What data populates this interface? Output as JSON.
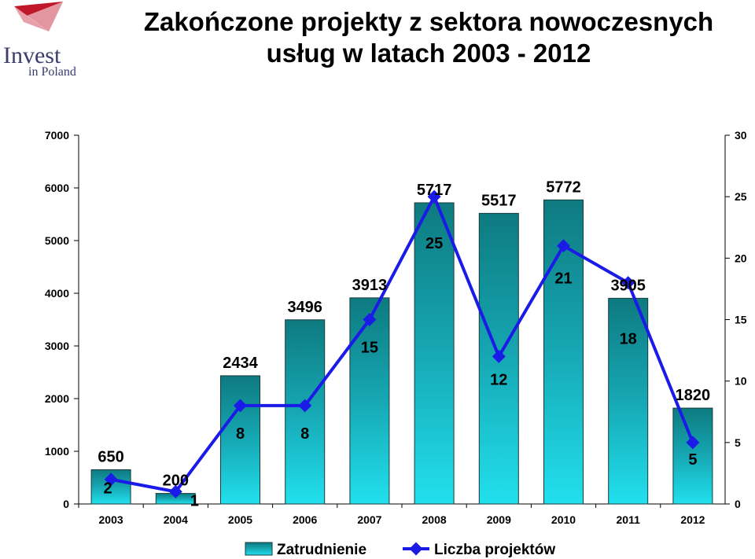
{
  "logo": {
    "line1": "Invest",
    "line2": "in Poland"
  },
  "title": {
    "line1": "Zakończone projekty z sektora nowoczesnych",
    "line2": "usług w latach 2003 - 2012"
  },
  "chart_data": {
    "type": "bar",
    "categories": [
      "2003",
      "2004",
      "2005",
      "2006",
      "2007",
      "2008",
      "2009",
      "2010",
      "2011",
      "2012"
    ],
    "series": [
      {
        "name": "Zatrudnienie",
        "type": "bar",
        "axis": "left",
        "values": [
          650,
          200,
          2434,
          3496,
          3913,
          5717,
          5517,
          5772,
          3905,
          1820
        ],
        "color": "#1fb5c3"
      },
      {
        "name": "Liczba projektów",
        "type": "line",
        "axis": "right",
        "values": [
          2,
          1,
          8,
          8,
          15,
          25,
          12,
          21,
          18,
          5
        ],
        "color": "#1b1be8"
      }
    ],
    "y_left": {
      "ticks": [
        "0",
        "1000",
        "2000",
        "3000",
        "4000",
        "5000",
        "6000",
        "7000"
      ],
      "ylim": [
        0,
        7000
      ]
    },
    "y_right": {
      "ticks": [
        "0",
        "5",
        "10",
        "15",
        "20",
        "25",
        "30"
      ],
      "ylim": [
        0,
        30
      ]
    },
    "legend": "bottom",
    "grid": false
  }
}
